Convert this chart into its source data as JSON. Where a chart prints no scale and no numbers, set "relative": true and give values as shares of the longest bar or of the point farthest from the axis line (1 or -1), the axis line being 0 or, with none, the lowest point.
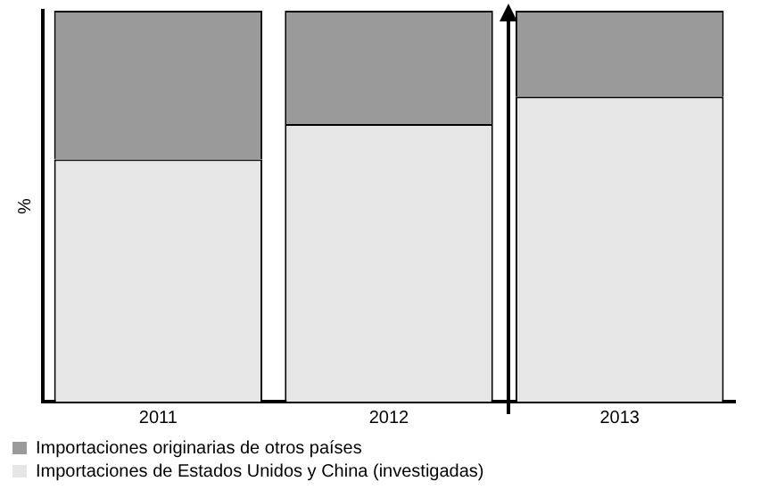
{
  "chart_data": {
    "type": "bar",
    "stacked": true,
    "relative": true,
    "ylabel": "%",
    "categories": [
      "2011",
      "2012",
      "2013"
    ],
    "series": [
      {
        "name": "Importaciones de Estados Unidos y China (investigadas)",
        "color": "#e6e6e6",
        "values": [
          0.62,
          0.71,
          0.78
        ]
      },
      {
        "name": "Importaciones originarias de otros países",
        "color": "#9a9a9a",
        "values": [
          0.38,
          0.29,
          0.22
        ]
      }
    ],
    "legend": "bottom",
    "grid": false
  }
}
